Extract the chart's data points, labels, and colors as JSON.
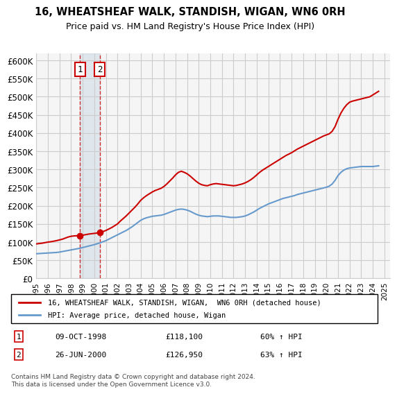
{
  "title": "16, WHEATSHEAF WALK, STANDISH, WIGAN, WN6 0RH",
  "subtitle": "Price paid vs. HM Land Registry's House Price Index (HPI)",
  "xlabel": "",
  "ylabel": "",
  "ylim": [
    0,
    620000
  ],
  "xlim": [
    1995.0,
    2025.5
  ],
  "yticks": [
    0,
    50000,
    100000,
    150000,
    200000,
    250000,
    300000,
    350000,
    400000,
    450000,
    500000,
    550000,
    600000
  ],
  "ytick_labels": [
    "£0",
    "£50K",
    "£100K",
    "£150K",
    "£200K",
    "£250K",
    "£300K",
    "£350K",
    "£400K",
    "£450K",
    "£500K",
    "£550K",
    "£600K"
  ],
  "xticks": [
    1995,
    1996,
    1997,
    1998,
    1999,
    2000,
    2001,
    2002,
    2003,
    2004,
    2005,
    2006,
    2007,
    2008,
    2009,
    2010,
    2011,
    2012,
    2013,
    2014,
    2015,
    2016,
    2017,
    2018,
    2019,
    2020,
    2021,
    2022,
    2023,
    2024,
    2025
  ],
  "purchase1_x": 1998.77,
  "purchase1_y": 118100,
  "purchase1_label": "1",
  "purchase1_date": "09-OCT-1998",
  "purchase1_price": "£118,100",
  "purchase1_hpi": "60% ↑ HPI",
  "purchase2_x": 2000.48,
  "purchase2_y": 126950,
  "purchase2_label": "2",
  "purchase2_date": "26-JUN-2000",
  "purchase2_price": "£126,950",
  "purchase2_hpi": "63% ↑ HPI",
  "red_line_color": "#cc0000",
  "blue_line_color": "#6699cc",
  "grid_color": "#cccccc",
  "bg_color": "#ffffff",
  "plot_bg_color": "#f5f5f5",
  "footnote": "Contains HM Land Registry data © Crown copyright and database right 2024.\nThis data is licensed under the Open Government Licence v3.0.",
  "legend_line1": "16, WHEATSHEAF WALK, STANDISH, WIGAN,  WN6 0RH (detached house)",
  "legend_line2": "HPI: Average price, detached house, Wigan",
  "red_x": [
    1995.0,
    1995.25,
    1995.5,
    1995.75,
    1996.0,
    1996.25,
    1996.5,
    1996.75,
    1997.0,
    1997.25,
    1997.5,
    1997.75,
    1998.0,
    1998.25,
    1998.5,
    1998.77,
    1999.0,
    1999.25,
    1999.5,
    1999.75,
    2000.0,
    2000.25,
    2000.48,
    2000.75,
    2001.0,
    2001.25,
    2001.5,
    2001.75,
    2002.0,
    2002.25,
    2002.5,
    2002.75,
    2003.0,
    2003.25,
    2003.5,
    2003.75,
    2004.0,
    2004.25,
    2004.5,
    2004.75,
    2005.0,
    2005.25,
    2005.5,
    2005.75,
    2006.0,
    2006.25,
    2006.5,
    2006.75,
    2007.0,
    2007.25,
    2007.5,
    2007.75,
    2008.0,
    2008.25,
    2008.5,
    2008.75,
    2009.0,
    2009.25,
    2009.5,
    2009.75,
    2010.0,
    2010.25,
    2010.5,
    2010.75,
    2011.0,
    2011.25,
    2011.5,
    2011.75,
    2012.0,
    2012.25,
    2012.5,
    2012.75,
    2013.0,
    2013.25,
    2013.5,
    2013.75,
    2014.0,
    2014.25,
    2014.5,
    2014.75,
    2015.0,
    2015.25,
    2015.5,
    2015.75,
    2016.0,
    2016.25,
    2016.5,
    2016.75,
    2017.0,
    2017.25,
    2017.5,
    2017.75,
    2018.0,
    2018.25,
    2018.5,
    2018.75,
    2019.0,
    2019.25,
    2019.5,
    2019.75,
    2020.0,
    2020.25,
    2020.5,
    2020.75,
    2021.0,
    2021.25,
    2021.5,
    2021.75,
    2022.0,
    2022.25,
    2022.5,
    2022.75,
    2023.0,
    2023.25,
    2023.5,
    2023.75,
    2024.0,
    2024.25,
    2024.5
  ],
  "red_y": [
    95000,
    96000,
    97000,
    98500,
    100000,
    101000,
    102500,
    104000,
    106000,
    108000,
    111000,
    114000,
    116000,
    117000,
    117500,
    118100,
    119000,
    120500,
    122000,
    123000,
    124000,
    125000,
    126950,
    129000,
    132000,
    136000,
    140000,
    145000,
    150000,
    158000,
    165000,
    172000,
    180000,
    188000,
    196000,
    205000,
    215000,
    222000,
    228000,
    233000,
    238000,
    242000,
    245000,
    248000,
    253000,
    260000,
    268000,
    276000,
    285000,
    292000,
    295000,
    292000,
    288000,
    282000,
    275000,
    268000,
    262000,
    258000,
    256000,
    255000,
    258000,
    260000,
    261000,
    260000,
    259000,
    258000,
    257000,
    256000,
    255000,
    256000,
    258000,
    260000,
    263000,
    267000,
    272000,
    278000,
    285000,
    292000,
    298000,
    303000,
    308000,
    313000,
    318000,
    323000,
    328000,
    333000,
    338000,
    342000,
    346000,
    351000,
    356000,
    360000,
    364000,
    368000,
    372000,
    376000,
    380000,
    384000,
    388000,
    392000,
    395000,
    398000,
    405000,
    418000,
    438000,
    455000,
    468000,
    478000,
    485000,
    488000,
    490000,
    492000,
    494000,
    496000,
    498000,
    500000,
    505000,
    510000,
    515000
  ],
  "blue_x": [
    1995.0,
    1995.25,
    1995.5,
    1995.75,
    1996.0,
    1996.25,
    1996.5,
    1996.75,
    1997.0,
    1997.25,
    1997.5,
    1997.75,
    1998.0,
    1998.25,
    1998.5,
    1998.75,
    1999.0,
    1999.25,
    1999.5,
    1999.75,
    2000.0,
    2000.25,
    2000.5,
    2000.75,
    2001.0,
    2001.25,
    2001.5,
    2001.75,
    2002.0,
    2002.25,
    2002.5,
    2002.75,
    2003.0,
    2003.25,
    2003.5,
    2003.75,
    2004.0,
    2004.25,
    2004.5,
    2004.75,
    2005.0,
    2005.25,
    2005.5,
    2005.75,
    2006.0,
    2006.25,
    2006.5,
    2006.75,
    2007.0,
    2007.25,
    2007.5,
    2007.75,
    2008.0,
    2008.25,
    2008.5,
    2008.75,
    2009.0,
    2009.25,
    2009.5,
    2009.75,
    2010.0,
    2010.25,
    2010.5,
    2010.75,
    2011.0,
    2011.25,
    2011.5,
    2011.75,
    2012.0,
    2012.25,
    2012.5,
    2012.75,
    2013.0,
    2013.25,
    2013.5,
    2013.75,
    2014.0,
    2014.25,
    2014.5,
    2014.75,
    2015.0,
    2015.25,
    2015.5,
    2015.75,
    2016.0,
    2016.25,
    2016.5,
    2016.75,
    2017.0,
    2017.25,
    2017.5,
    2017.75,
    2018.0,
    2018.25,
    2018.5,
    2018.75,
    2019.0,
    2019.25,
    2019.5,
    2019.75,
    2020.0,
    2020.25,
    2020.5,
    2020.75,
    2021.0,
    2021.25,
    2021.5,
    2021.75,
    2022.0,
    2022.25,
    2022.5,
    2022.75,
    2023.0,
    2023.25,
    2023.5,
    2023.75,
    2024.0,
    2024.25,
    2024.5
  ],
  "blue_y": [
    68000,
    68500,
    69000,
    69500,
    70000,
    70500,
    71000,
    71500,
    72500,
    74000,
    75500,
    77000,
    78500,
    80000,
    81500,
    83000,
    85000,
    87000,
    89000,
    91000,
    93000,
    95500,
    98000,
    101000,
    104000,
    108000,
    112000,
    116000,
    120000,
    124000,
    128000,
    132000,
    137000,
    142000,
    148000,
    154000,
    160000,
    164000,
    167000,
    169000,
    171000,
    172000,
    173000,
    174000,
    176000,
    179000,
    182000,
    185000,
    188000,
    190000,
    191000,
    190000,
    188000,
    185000,
    181000,
    177000,
    174000,
    172000,
    171000,
    170000,
    171000,
    172000,
    172000,
    172000,
    171000,
    170000,
    169000,
    168000,
    168000,
    168000,
    169000,
    170000,
    172000,
    175000,
    179000,
    183000,
    188000,
    193000,
    197000,
    201000,
    205000,
    208000,
    211000,
    214000,
    217000,
    220000,
    222000,
    224000,
    226000,
    228000,
    231000,
    233000,
    235000,
    237000,
    239000,
    241000,
    243000,
    245000,
    247000,
    249000,
    251000,
    254000,
    260000,
    270000,
    283000,
    292000,
    298000,
    302000,
    304000,
    305000,
    306000,
    307000,
    308000,
    308000,
    308000,
    308000,
    308000,
    309000,
    310000
  ]
}
